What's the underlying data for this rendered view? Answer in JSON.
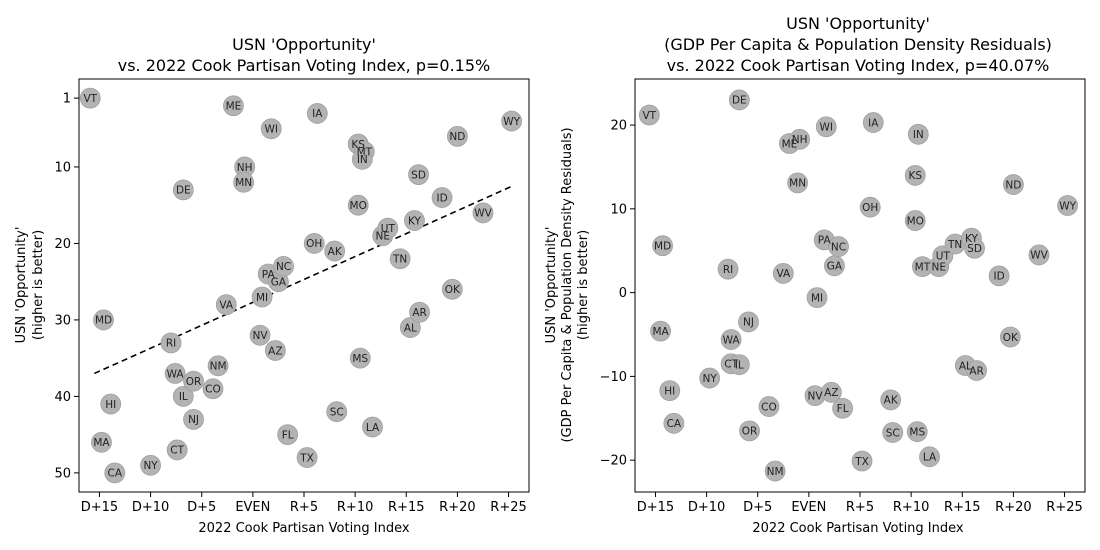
{
  "chart_data": [
    {
      "type": "scatter",
      "title_lines": [
        "USN 'Opportunity'",
        "vs. 2022 Cook Partisan Voting Index, p=0.15%"
      ],
      "xlabel": "2022 Cook Partisan Voting Index",
      "ylabel_lines": [
        "USN 'Opportunity'",
        "(higher is better)"
      ],
      "xlim": [
        -17,
        27
      ],
      "ylim": [
        52.5,
        -1.5
      ],
      "y_inverted": true,
      "xticks": [
        {
          "v": -15,
          "label": "D+15"
        },
        {
          "v": -10,
          "label": "D+10"
        },
        {
          "v": -5,
          "label": "D+5"
        },
        {
          "v": 0,
          "label": "EVEN"
        },
        {
          "v": 5,
          "label": "R+5"
        },
        {
          "v": 10,
          "label": "R+10"
        },
        {
          "v": 15,
          "label": "R+15"
        },
        {
          "v": 20,
          "label": "R+20"
        },
        {
          "v": 25,
          "label": "R+25"
        }
      ],
      "yticks": [
        {
          "v": 1,
          "label": "1"
        },
        {
          "v": 10,
          "label": "10"
        },
        {
          "v": 20,
          "label": "20"
        },
        {
          "v": 30,
          "label": "30"
        },
        {
          "v": 40,
          "label": "40"
        },
        {
          "v": 50,
          "label": "50"
        }
      ],
      "trendline": {
        "x": [
          -15.5,
          25.2
        ],
        "y": [
          37.0,
          12.6
        ],
        "style": "dashed"
      },
      "marker_color": "#b3b3b3",
      "points": [
        {
          "label": "VT",
          "x": -15.9,
          "y": 1
        },
        {
          "label": "MD",
          "x": -14.6,
          "y": 30
        },
        {
          "label": "MA",
          "x": -14.8,
          "y": 46
        },
        {
          "label": "HI",
          "x": -13.9,
          "y": 41
        },
        {
          "label": "CA",
          "x": -13.5,
          "y": 50
        },
        {
          "label": "NY",
          "x": -10.0,
          "y": 49
        },
        {
          "label": "RI",
          "x": -8.0,
          "y": 33
        },
        {
          "label": "WA",
          "x": -7.6,
          "y": 37
        },
        {
          "label": "CT",
          "x": -7.4,
          "y": 47
        },
        {
          "label": "DE",
          "x": -6.8,
          "y": 13
        },
        {
          "label": "IL",
          "x": -6.8,
          "y": 40
        },
        {
          "label": "OR",
          "x": -5.8,
          "y": 38
        },
        {
          "label": "NJ",
          "x": -5.8,
          "y": 43
        },
        {
          "label": "CO",
          "x": -3.9,
          "y": 39
        },
        {
          "label": "NM",
          "x": -3.4,
          "y": 36
        },
        {
          "label": "VA",
          "x": -2.6,
          "y": 28
        },
        {
          "label": "ME",
          "x": -1.9,
          "y": 2
        },
        {
          "label": "NH",
          "x": -0.8,
          "y": 10
        },
        {
          "label": "MN",
          "x": -0.9,
          "y": 12
        },
        {
          "label": "NV",
          "x": 0.7,
          "y": 32
        },
        {
          "label": "MI",
          "x": 0.9,
          "y": 27
        },
        {
          "label": "PA",
          "x": 1.5,
          "y": 24
        },
        {
          "label": "WI",
          "x": 1.8,
          "y": 5
        },
        {
          "label": "GA",
          "x": 2.5,
          "y": 25
        },
        {
          "label": "AZ",
          "x": 2.2,
          "y": 34
        },
        {
          "label": "NC",
          "x": 3.0,
          "y": 23
        },
        {
          "label": "FL",
          "x": 3.4,
          "y": 45
        },
        {
          "label": "TX",
          "x": 5.3,
          "y": 48
        },
        {
          "label": "OH",
          "x": 6.0,
          "y": 20
        },
        {
          "label": "IA",
          "x": 6.3,
          "y": 3
        },
        {
          "label": "AK",
          "x": 8.0,
          "y": 21
        },
        {
          "label": "SC",
          "x": 8.2,
          "y": 42
        },
        {
          "label": "KS",
          "x": 10.3,
          "y": 7
        },
        {
          "label": "MT",
          "x": 10.9,
          "y": 8
        },
        {
          "label": "IN",
          "x": 10.7,
          "y": 9
        },
        {
          "label": "MO",
          "x": 10.3,
          "y": 15
        },
        {
          "label": "MS",
          "x": 10.5,
          "y": 35
        },
        {
          "label": "LA",
          "x": 11.7,
          "y": 44
        },
        {
          "label": "NE",
          "x": 12.7,
          "y": 19
        },
        {
          "label": "UT",
          "x": 13.2,
          "y": 18
        },
        {
          "label": "TN",
          "x": 14.4,
          "y": 22
        },
        {
          "label": "AL",
          "x": 15.4,
          "y": 31
        },
        {
          "label": "SD",
          "x": 16.2,
          "y": 11
        },
        {
          "label": "KY",
          "x": 15.8,
          "y": 17
        },
        {
          "label": "AR",
          "x": 16.3,
          "y": 29
        },
        {
          "label": "ID",
          "x": 18.5,
          "y": 14
        },
        {
          "label": "OK",
          "x": 19.5,
          "y": 26
        },
        {
          "label": "ND",
          "x": 20.0,
          "y": 6
        },
        {
          "label": "WV",
          "x": 22.5,
          "y": 16
        },
        {
          "label": "WY",
          "x": 25.3,
          "y": 4
        }
      ]
    },
    {
      "type": "scatter",
      "title_lines": [
        "USN 'Opportunity'",
        "(GDP Per Capita & Population Density Residuals)",
        "vs. 2022 Cook Partisan Voting Index, p=40.07%"
      ],
      "xlabel": "2022 Cook Partisan Voting Index",
      "ylabel_lines": [
        "USN 'Opportunity'",
        "(GDP Per Capita & Population Density Residuals)",
        "(higher is better)"
      ],
      "xlim": [
        -17,
        27
      ],
      "ylim": [
        -23.8,
        25.5
      ],
      "y_inverted": false,
      "xticks": [
        {
          "v": -15,
          "label": "D+15"
        },
        {
          "v": -10,
          "label": "D+10"
        },
        {
          "v": -5,
          "label": "D+5"
        },
        {
          "v": 0,
          "label": "EVEN"
        },
        {
          "v": 5,
          "label": "R+5"
        },
        {
          "v": 10,
          "label": "R+10"
        },
        {
          "v": 15,
          "label": "R+15"
        },
        {
          "v": 20,
          "label": "R+20"
        },
        {
          "v": 25,
          "label": "R+25"
        }
      ],
      "yticks": [
        {
          "v": 20,
          "label": "20"
        },
        {
          "v": 10,
          "label": "10"
        },
        {
          "v": 0,
          "label": "0"
        },
        {
          "v": -10,
          "label": "−10"
        },
        {
          "v": -20,
          "label": "−20"
        }
      ],
      "marker_color": "#b3b3b3",
      "points": [
        {
          "label": "VT",
          "x": -15.6,
          "y": 21.2
        },
        {
          "label": "MD",
          "x": -14.3,
          "y": 5.6
        },
        {
          "label": "MA",
          "x": -14.5,
          "y": -4.6
        },
        {
          "label": "HI",
          "x": -13.6,
          "y": -11.7
        },
        {
          "label": "CA",
          "x": -13.2,
          "y": -15.6
        },
        {
          "label": "NY",
          "x": -9.7,
          "y": -10.2
        },
        {
          "label": "RI",
          "x": -7.9,
          "y": 2.8
        },
        {
          "label": "WA",
          "x": -7.6,
          "y": -5.6
        },
        {
          "label": "CT",
          "x": -7.6,
          "y": -8.5
        },
        {
          "label": "IL",
          "x": -6.8,
          "y": -8.6
        },
        {
          "label": "DE",
          "x": -6.8,
          "y": 23.0
        },
        {
          "label": "NJ",
          "x": -5.9,
          "y": -3.5
        },
        {
          "label": "OR",
          "x": -5.8,
          "y": -16.5
        },
        {
          "label": "CO",
          "x": -3.9,
          "y": -13.6
        },
        {
          "label": "NM",
          "x": -3.3,
          "y": -21.3
        },
        {
          "label": "VA",
          "x": -2.5,
          "y": 2.3
        },
        {
          "label": "ME",
          "x": -1.9,
          "y": 17.8
        },
        {
          "label": "NH",
          "x": -0.9,
          "y": 18.3
        },
        {
          "label": "MN",
          "x": -1.1,
          "y": 13.1
        },
        {
          "label": "NV",
          "x": 0.6,
          "y": -12.3
        },
        {
          "label": "MI",
          "x": 0.8,
          "y": -0.6
        },
        {
          "label": "PA",
          "x": 1.5,
          "y": 6.3
        },
        {
          "label": "WI",
          "x": 1.7,
          "y": 19.8
        },
        {
          "label": "GA",
          "x": 2.5,
          "y": 3.2
        },
        {
          "label": "AZ",
          "x": 2.2,
          "y": -11.9
        },
        {
          "label": "NC",
          "x": 2.9,
          "y": 5.5
        },
        {
          "label": "FL",
          "x": 3.3,
          "y": -13.8
        },
        {
          "label": "TX",
          "x": 5.2,
          "y": -20.1
        },
        {
          "label": "OH",
          "x": 6.0,
          "y": 10.2
        },
        {
          "label": "IA",
          "x": 6.3,
          "y": 20.3
        },
        {
          "label": "AK",
          "x": 8.0,
          "y": -12.8
        },
        {
          "label": "SC",
          "x": 8.2,
          "y": -16.7
        },
        {
          "label": "KS",
          "x": 10.4,
          "y": 14.0
        },
        {
          "label": "IN",
          "x": 10.7,
          "y": 18.9
        },
        {
          "label": "MO",
          "x": 10.4,
          "y": 8.6
        },
        {
          "label": "MS",
          "x": 10.6,
          "y": -16.6
        },
        {
          "label": "LA",
          "x": 11.8,
          "y": -19.6
        },
        {
          "label": "MT",
          "x": 11.1,
          "y": 3.1
        },
        {
          "label": "NE",
          "x": 12.7,
          "y": 3.1
        },
        {
          "label": "UT",
          "x": 13.1,
          "y": 4.4
        },
        {
          "label": "TN",
          "x": 14.3,
          "y": 5.8
        },
        {
          "label": "KY",
          "x": 15.9,
          "y": 6.5
        },
        {
          "label": "SD",
          "x": 16.2,
          "y": 5.3
        },
        {
          "label": "AL",
          "x": 15.3,
          "y": -8.7
        },
        {
          "label": "AR",
          "x": 16.4,
          "y": -9.3
        },
        {
          "label": "ID",
          "x": 18.6,
          "y": 2.0
        },
        {
          "label": "OK",
          "x": 19.7,
          "y": -5.3
        },
        {
          "label": "ND",
          "x": 20.0,
          "y": 12.9
        },
        {
          "label": "WV",
          "x": 22.5,
          "y": 4.5
        },
        {
          "label": "WY",
          "x": 25.3,
          "y": 10.4
        }
      ]
    }
  ]
}
